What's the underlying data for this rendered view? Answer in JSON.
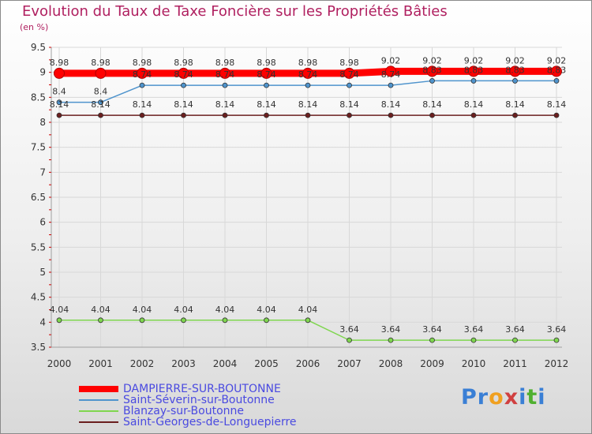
{
  "title": "Evolution du Taux de Taxe Foncière sur les Propriétés Bâties",
  "unit_label": "(en %)",
  "chart_data": {
    "type": "line",
    "title": "Evolution du Taux de Taxe Foncière sur les Propriétés Bâties",
    "ylabel": "(en %)",
    "xlabel": "",
    "ylim": [
      3.5,
      9.5
    ],
    "yticks": [
      "3.5",
      "4",
      "4.5",
      "5",
      "5.5",
      "6",
      "6.5",
      "7",
      "7.5",
      "8",
      "8.5",
      "9",
      "9.5"
    ],
    "categories": [
      "2000",
      "2001",
      "2002",
      "2003",
      "2004",
      "2005",
      "2006",
      "2007",
      "2008",
      "2009",
      "2010",
      "2011",
      "2012"
    ],
    "series": [
      {
        "name": "DAMPIERRE-SUR-BOUTONNE",
        "color": "#ff0000",
        "values": [
          8.98,
          8.98,
          8.98,
          8.98,
          8.98,
          8.98,
          8.98,
          8.98,
          9.02,
          9.02,
          9.02,
          9.02,
          9.02
        ],
        "labels": [
          "8.98",
          "8.98",
          "8.98",
          "8.98",
          "8.98",
          "8.98",
          "8.98",
          "8.98",
          "9.02",
          "9.02",
          "9.02",
          "9.02",
          "9.02"
        ]
      },
      {
        "name": "Saint-Séverin-sur-Boutonne",
        "color": "#4f94cd",
        "values": [
          8.4,
          8.4,
          8.74,
          8.74,
          8.74,
          8.74,
          8.74,
          8.74,
          8.74,
          8.83,
          8.83,
          8.83,
          8.83
        ],
        "labels": [
          "8.4",
          "8.4",
          "8.74",
          "8.74",
          "8.74",
          "8.74",
          "8.74",
          "8.74",
          "8.74",
          "8.83",
          "8.83",
          "8.83",
          "8.83"
        ]
      },
      {
        "name": "Blanzay-sur-Boutonne",
        "color": "#7fd64f",
        "values": [
          4.04,
          4.04,
          4.04,
          4.04,
          4.04,
          4.04,
          4.04,
          3.64,
          3.64,
          3.64,
          3.64,
          3.64,
          3.64
        ],
        "labels": [
          "4.04",
          "4.04",
          "4.04",
          "4.04",
          "4.04",
          "4.04",
          "4.04",
          "3.64",
          "3.64",
          "3.64",
          "3.64",
          "3.64",
          "3.64"
        ]
      },
      {
        "name": "Saint-Georges-de-Longuepierre",
        "color": "#6b1f1f",
        "values": [
          8.14,
          8.14,
          8.14,
          8.14,
          8.14,
          8.14,
          8.14,
          8.14,
          8.14,
          8.14,
          8.14,
          8.14,
          8.14
        ],
        "labels": [
          "8.14",
          "8.14",
          "8.14",
          "8.14",
          "8.14",
          "8.14",
          "8.14",
          "8.14",
          "8.14",
          "8.14",
          "8.14",
          "8.14",
          "8.14"
        ]
      }
    ]
  },
  "logo": {
    "letters": [
      "P",
      "r",
      "o",
      "x",
      "i",
      "t",
      "i"
    ],
    "colors": [
      "#3a7fd5",
      "#3a7fd5",
      "#f0a020",
      "#d04040",
      "#3a7fd5",
      "#50b030",
      "#3a7fd5"
    ]
  }
}
